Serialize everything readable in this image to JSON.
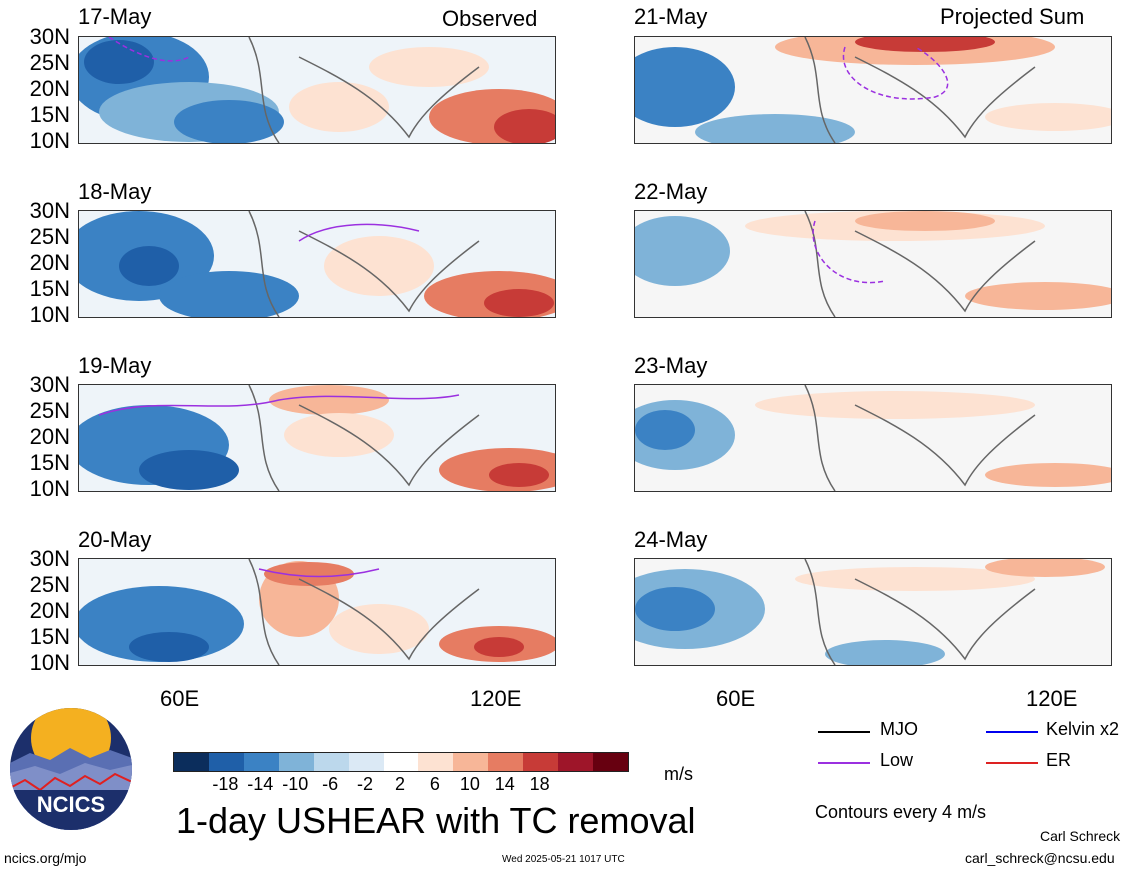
{
  "observed_label": "Observed",
  "projected_label": "Projected Sum",
  "lat_labels": [
    "30N",
    "25N",
    "20N",
    "15N",
    "10N"
  ],
  "lon_labels": [
    "60E",
    "120E"
  ],
  "panels_left": [
    {
      "date": "17-May"
    },
    {
      "date": "18-May"
    },
    {
      "date": "19-May"
    },
    {
      "date": "20-May"
    }
  ],
  "panels_right": [
    {
      "date": "21-May"
    },
    {
      "date": "22-May"
    },
    {
      "date": "23-May"
    },
    {
      "date": "24-May"
    }
  ],
  "colorbar": {
    "ticks": [
      "-18",
      "-14",
      "-10",
      "-6",
      "-2",
      "2",
      "6",
      "10",
      "14",
      "18"
    ],
    "colors": [
      "#0b2d5c",
      "#1f5fa8",
      "#3b82c4",
      "#7fb3d8",
      "#bcd8ec",
      "#dbe9f5",
      "#ffffff",
      "#fde2d2",
      "#f7b698",
      "#e67c62",
      "#c73b37",
      "#9e1529",
      "#670010"
    ],
    "unit": "m/s"
  },
  "title": "1-day USHEAR with TC removal",
  "logo_text": "NCICS",
  "legend": {
    "items": [
      {
        "label": "MJO",
        "color": "#000000"
      },
      {
        "label": "Kelvin x2",
        "color": "#0000ee"
      },
      {
        "label": "Low",
        "color": "#9b30e0"
      },
      {
        "label": "ER",
        "color": "#dd2222"
      }
    ],
    "contours_note": "Contours every 4 m/s"
  },
  "footer": {
    "url": "ncics.org/mjo",
    "timestamp": "Wed 2025-05-21 1017 UTC",
    "author": "Carl Schreck",
    "email": "carl_schreck@ncsu.edu"
  }
}
